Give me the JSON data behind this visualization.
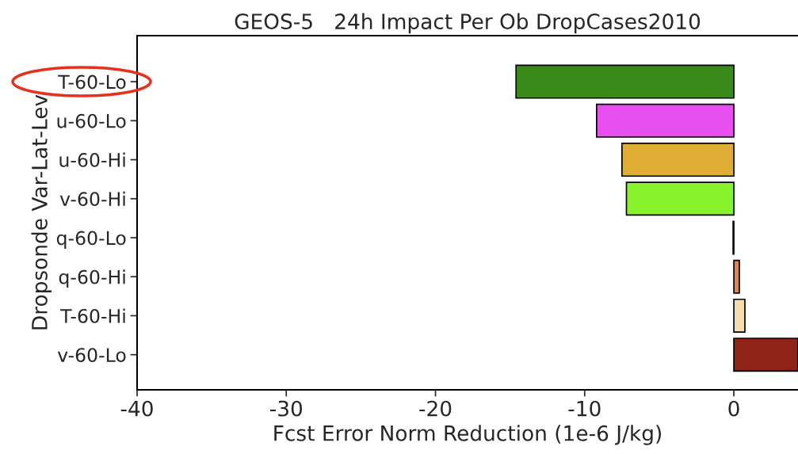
{
  "chart_data": {
    "type": "bar",
    "orientation": "horizontal",
    "title": "GEOS-5   24h Impact Per Ob DropCases2010",
    "xlabel": "Fcst Error Norm Reduction (1e-6 J/kg)",
    "ylabel": "Dropsonde Var-Lat-Lev",
    "categories": [
      "T-60-Lo",
      "u-60-Lo",
      "u-60-Hi",
      "v-60-Hi",
      "q-60-Lo",
      "q-60-Hi",
      "T-60-Hi",
      "v-60-Lo"
    ],
    "values": [
      -14.6,
      -9.2,
      -7.5,
      -7.2,
      -0.05,
      0.37,
      0.74,
      4.3
    ],
    "colors": [
      "#3a8a1a",
      "#e84ff0",
      "#e0ae35",
      "#88f22a",
      "#888888",
      "#e8804a",
      "#f5dcae",
      "#8f2317"
    ],
    "xlim": [
      -40,
      4.3
    ],
    "xticks": [
      -40,
      -30,
      -20,
      -10,
      0
    ],
    "grid": false
  }
}
